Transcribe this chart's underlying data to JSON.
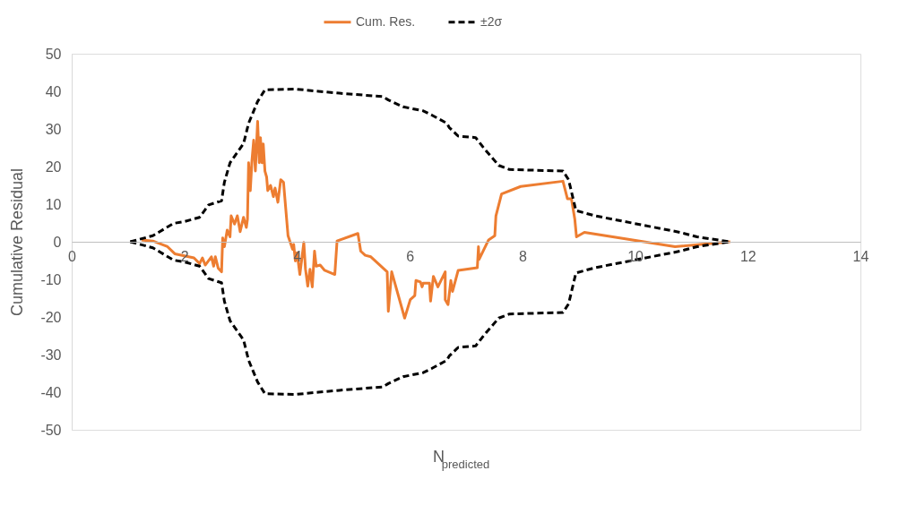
{
  "chart_data": {
    "type": "line",
    "xlabel": "N$_{predicted}$",
    "ylabel": "Cumulative Residual",
    "xlim": [
      0,
      14
    ],
    "xticks": [
      0,
      2,
      4,
      6,
      8,
      10,
      12,
      14
    ],
    "ylim": [
      -50,
      50
    ],
    "yticks": [
      -50,
      -40,
      -30,
      -20,
      -10,
      0,
      10,
      20,
      30,
      40,
      50
    ],
    "grid": false,
    "legend": "top",
    "marker": "none",
    "series": [
      {
        "name": "Cum. Res.",
        "color": "#ed7d31",
        "line_style": "solid",
        "x": [
          1.24,
          1.44,
          1.7,
          1.83,
          2.17,
          2.27,
          2.32,
          2.37,
          2.48,
          2.52,
          2.55,
          2.6,
          2.66,
          2.68,
          2.71,
          2.76,
          2.81,
          2.83,
          2.89,
          2.94,
          2.99,
          3.05,
          3.1,
          3.12,
          3.14,
          3.17,
          3.2,
          3.23,
          3.26,
          3.3,
          3.33,
          3.35,
          3.38,
          3.4,
          3.43,
          3.46,
          3.48,
          3.53,
          3.58,
          3.61,
          3.66,
          3.71,
          3.76,
          3.84,
          3.92,
          3.94,
          3.97,
          4.0,
          4.05,
          4.12,
          4.15,
          4.19,
          4.23,
          4.27,
          4.31,
          4.34,
          4.41,
          4.49,
          4.67,
          4.71,
          5.08,
          5.13,
          5.21,
          5.31,
          5.6,
          5.62,
          5.68,
          5.91,
          6.01,
          6.09,
          6.11,
          6.19,
          6.22,
          6.24,
          6.35,
          6.37,
          6.42,
          6.5,
          6.63,
          6.63,
          6.68,
          6.73,
          6.76,
          6.86,
          7.2,
          7.22,
          7.23,
          7.4,
          7.51,
          7.53,
          7.63,
          7.97,
          8.72,
          8.8,
          8.87,
          8.93,
          8.96,
          9.1,
          10.71,
          11.69
        ],
        "values": [
          0.5,
          0.2,
          -1.3,
          -3.2,
          -4.3,
          -5.8,
          -4.3,
          -6.2,
          -4.0,
          -6.5,
          -4.0,
          -7.0,
          -8.0,
          1.0,
          -1.3,
          3.1,
          1.3,
          6.9,
          4.7,
          6.9,
          2.7,
          6.5,
          3.8,
          6.0,
          21.0,
          13.6,
          21.7,
          27.0,
          18.8,
          32.0,
          21.0,
          27.7,
          21.0,
          26.0,
          18.8,
          17.2,
          13.6,
          15.0,
          12.0,
          14.3,
          10.5,
          16.5,
          15.8,
          1.6,
          -2.0,
          -0.7,
          -5.1,
          -2.9,
          -8.7,
          -0.2,
          -7.3,
          -11.8,
          -7.3,
          -12.0,
          -2.5,
          -6.5,
          -6.2,
          -7.6,
          -8.7,
          0.2,
          2.2,
          -2.5,
          -3.6,
          -4.0,
          -8.0,
          -18.5,
          -8.0,
          -20.3,
          -15.4,
          -14.3,
          -10.3,
          -10.7,
          -12.0,
          -11.0,
          -11.0,
          -15.8,
          -9.2,
          -12.0,
          -8.0,
          -15.4,
          -16.7,
          -10.3,
          -13.2,
          -7.6,
          -6.9,
          -1.3,
          -4.7,
          0.5,
          1.6,
          6.9,
          12.7,
          14.7,
          16.1,
          11.4,
          11.4,
          6.0,
          1.3,
          2.5,
          -1.3,
          0.0
        ]
      },
      {
        "name": "±2σ",
        "color": "#000000",
        "line_style": "dashed",
        "x": [
          1.04,
          1.44,
          1.81,
          2.01,
          2.27,
          2.43,
          2.66,
          2.71,
          2.81,
          3.05,
          3.14,
          3.3,
          3.43,
          3.97,
          4.38,
          4.75,
          5.52,
          5.62,
          5.88,
          6.24,
          6.39,
          6.66,
          6.7,
          6.86,
          7.17,
          7.32,
          7.58,
          7.77,
          8.72,
          8.82,
          8.95,
          9.29,
          10.8,
          11.1,
          11.69
        ],
        "values": [
          0.0,
          1.6,
          4.9,
          5.4,
          6.5,
          9.8,
          10.9,
          15.8,
          21.0,
          26.1,
          31.5,
          37.3,
          40.4,
          40.6,
          40.0,
          39.5,
          38.6,
          37.7,
          35.9,
          34.8,
          33.7,
          31.5,
          30.4,
          28.1,
          27.7,
          24.8,
          20.3,
          19.2,
          18.8,
          16.5,
          8.3,
          6.9,
          2.5,
          1.3,
          0.0
        ]
      },
      {
        "color": "#000000",
        "line_style": "dashed",
        "x": [
          1.04,
          1.44,
          1.81,
          2.01,
          2.27,
          2.43,
          2.66,
          2.71,
          2.81,
          3.05,
          3.14,
          3.3,
          3.43,
          3.97,
          4.38,
          4.75,
          5.52,
          5.62,
          5.88,
          6.24,
          6.39,
          6.66,
          6.7,
          6.86,
          7.17,
          7.32,
          7.58,
          7.77,
          8.72,
          8.82,
          8.95,
          9.29,
          10.8,
          11.1,
          11.69
        ],
        "values": [
          0.0,
          -1.6,
          -4.9,
          -5.4,
          -6.5,
          -9.8,
          -10.9,
          -15.8,
          -21.0,
          -26.1,
          -31.5,
          -37.3,
          -40.4,
          -40.6,
          -40.0,
          -39.5,
          -38.6,
          -37.7,
          -35.9,
          -34.8,
          -33.7,
          -31.5,
          -30.4,
          -28.1,
          -27.7,
          -24.8,
          -20.3,
          -19.2,
          -18.8,
          -16.5,
          -8.3,
          -6.9,
          -2.5,
          -1.3,
          0.0
        ]
      }
    ]
  }
}
